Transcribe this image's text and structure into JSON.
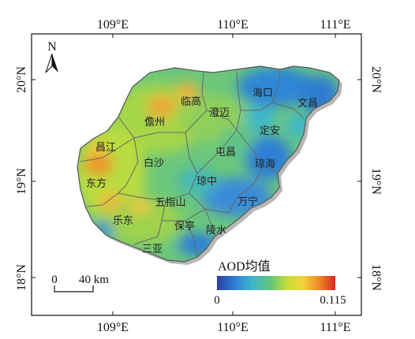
{
  "map": {
    "longitude_labels": [
      "109°E",
      "110°E",
      "111°E"
    ],
    "latitude_labels": [
      "20°N",
      "19°N",
      "18°N"
    ],
    "north_label": "N",
    "regions": [
      {
        "id": "haikou",
        "label": "海口"
      },
      {
        "id": "wenchang",
        "label": "文昌"
      },
      {
        "id": "lingao",
        "label": "临高"
      },
      {
        "id": "chengmai",
        "label": "澄迈"
      },
      {
        "id": "danzhou",
        "label": "儋州"
      },
      {
        "id": "dingan",
        "label": "定安"
      },
      {
        "id": "changjiang",
        "label": "昌江"
      },
      {
        "id": "tunchang",
        "label": "屯昌"
      },
      {
        "id": "qionghai",
        "label": "琼海"
      },
      {
        "id": "baisha",
        "label": "白沙"
      },
      {
        "id": "dongfang",
        "label": "东方"
      },
      {
        "id": "qiongzhong",
        "label": "琼中"
      },
      {
        "id": "wuzhishan",
        "label": "五指山"
      },
      {
        "id": "wanning",
        "label": "万宁"
      },
      {
        "id": "ledong",
        "label": "乐东"
      },
      {
        "id": "baoting",
        "label": "保亭"
      },
      {
        "id": "lingshui",
        "label": "陵水"
      },
      {
        "id": "sanya",
        "label": "三亚"
      }
    ],
    "scale_bar": {
      "start": "0",
      "end": "40 km"
    },
    "legend": {
      "title": "AOD均值",
      "min": "0",
      "max": "0.115",
      "colors": [
        "#2b3f9e",
        "#2f7fd6",
        "#3fb6c9",
        "#62c47a",
        "#c9dd3a",
        "#f2d43a",
        "#f08a2a",
        "#d7261e"
      ]
    }
  }
}
